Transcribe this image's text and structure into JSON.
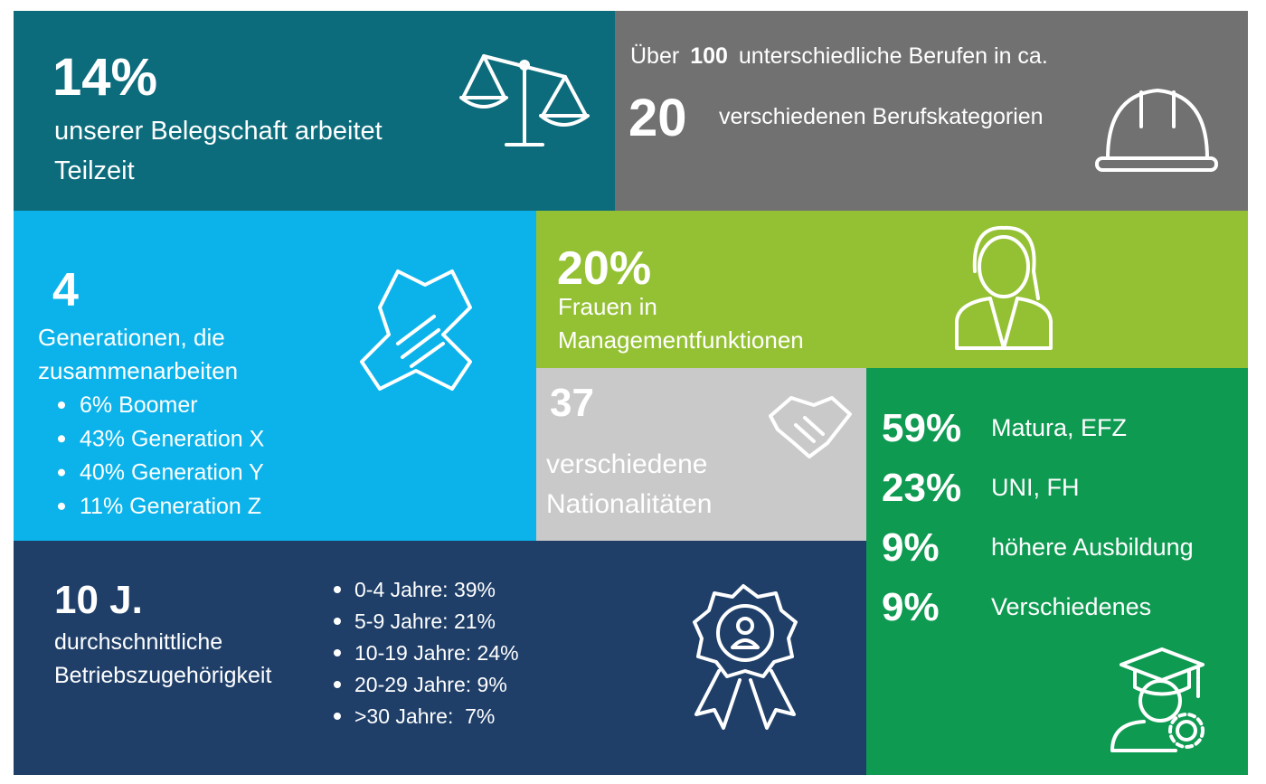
{
  "parttime": {
    "value": "14%",
    "lines": [
      "unserer Belegschaft arbeitet",
      "Teilzeit"
    ]
  },
  "professions": {
    "prefix": "Über",
    "count": "100",
    "text": "unterschiedliche Berufen in ca.",
    "categories": "20",
    "categories_text": "verschiedenen Berufskategorien"
  },
  "generations": {
    "value": "4",
    "lines": [
      "Generationen, die",
      "zusammenarbeiten"
    ],
    "items": [
      "6% Boomer",
      "43% Generation X",
      "40% Generation Y",
      "11% Generation Z"
    ]
  },
  "women": {
    "value": "20%",
    "lines": [
      "Frauen in",
      "Managementfunktionen"
    ]
  },
  "nationalities": {
    "value": "37",
    "lines": [
      "verschiedene",
      "Nationalitäten"
    ]
  },
  "education": {
    "rows": [
      {
        "value": "59%",
        "label": "Matura, EFZ"
      },
      {
        "value": "23%",
        "label": "UNI, FH"
      },
      {
        "value": "9%",
        "label": "höhere Ausbildung"
      },
      {
        "value": "9%",
        "label": "Verschiedenes"
      }
    ]
  },
  "tenure": {
    "value": "10 J.",
    "lines": [
      "durchschnittliche",
      "Betriebszugehörigkeit"
    ],
    "items": [
      "0-4 Jahre: 39%",
      "5-9 Jahre: 21%",
      "10-19 Jahre: 24%",
      "20-29 Jahre: 9%",
      ">30 Jahre:  7%"
    ]
  }
}
